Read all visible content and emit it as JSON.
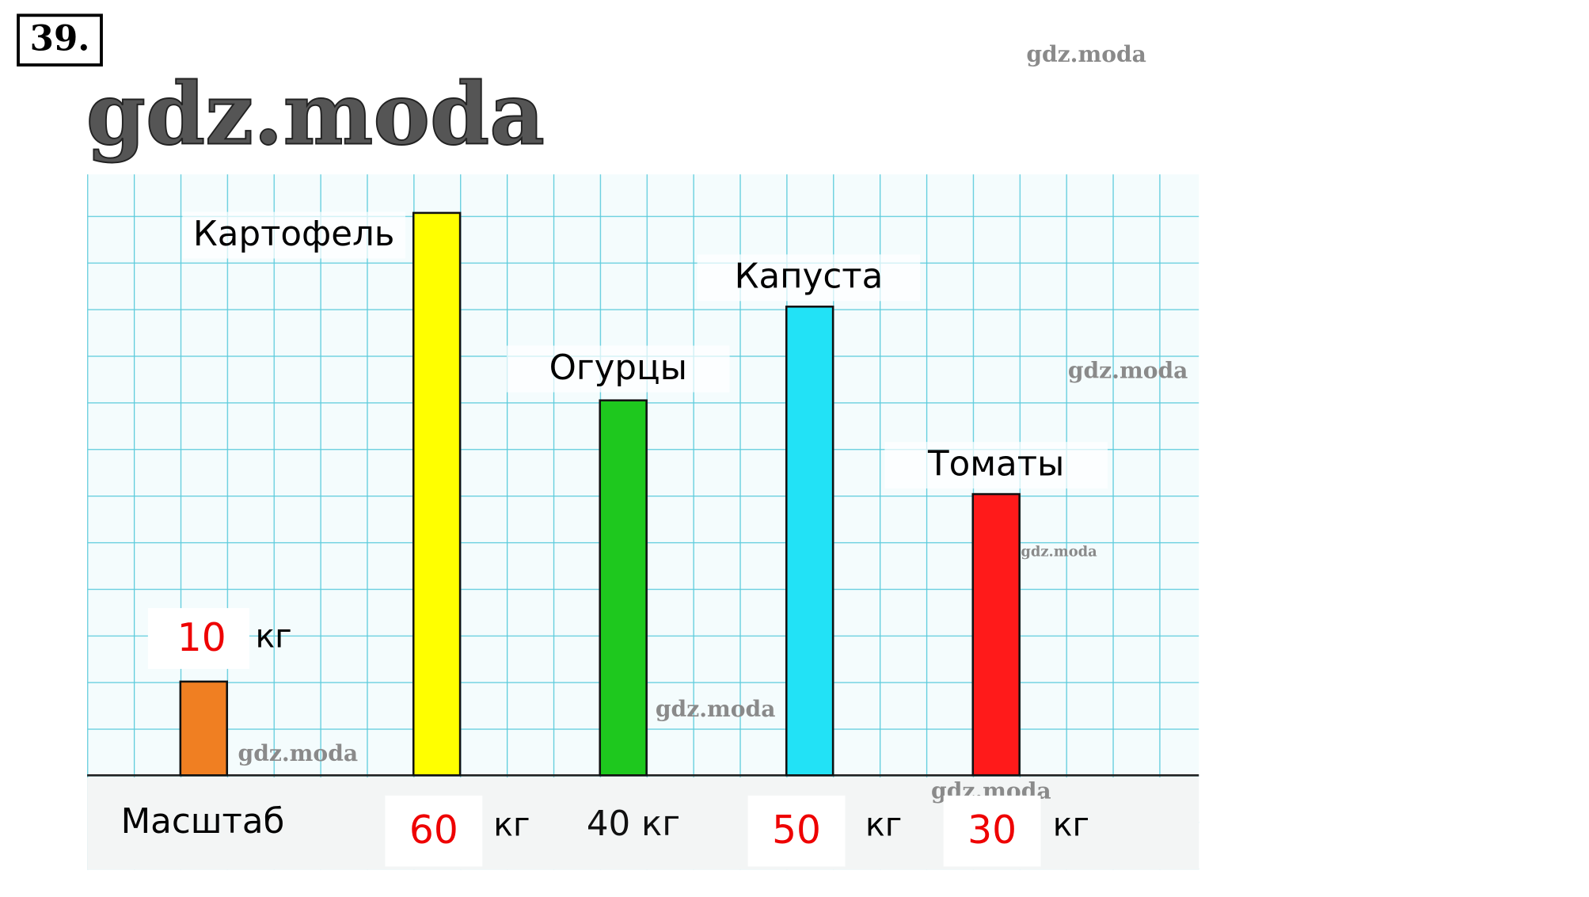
{
  "problem_number": "39.",
  "watermark": "gdz.moda",
  "chart_data": {
    "type": "bar",
    "categories": [
      "Картофель",
      "Огурцы",
      "Капуста",
      "Томаты"
    ],
    "values": [
      60,
      40,
      50,
      30
    ],
    "value_labels": [
      "60",
      "40 кг",
      "50",
      "30"
    ],
    "colors": [
      "#ffff00",
      "#1ec81e",
      "#22e2f6",
      "#ff1a1a"
    ],
    "unit": "кг",
    "ylim": [
      0,
      60
    ],
    "scale": {
      "label": "Масштаб",
      "value": 10,
      "color": "#f07f22"
    }
  }
}
